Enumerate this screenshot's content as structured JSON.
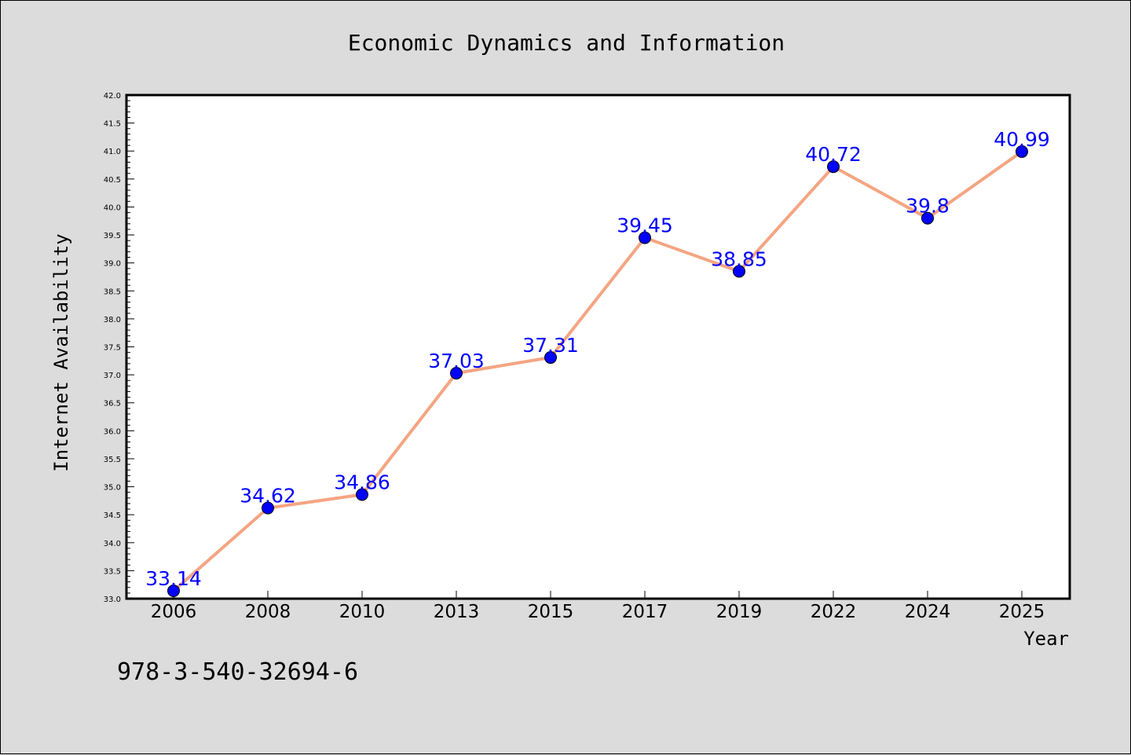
{
  "chart_data": {
    "type": "line",
    "title": "Economic Dynamics and Information",
    "xlabel": "Year",
    "ylabel": "Internet Availability",
    "categories": [
      "2006",
      "2008",
      "2010",
      "2013",
      "2015",
      "2017",
      "2019",
      "2022",
      "2024",
      "2025"
    ],
    "series": [
      {
        "values": [
          33.14,
          34.62,
          34.86,
          37.03,
          37.31,
          39.45,
          38.85,
          40.72,
          39.8,
          40.99
        ],
        "data_labels": [
          "33.14",
          "34.62",
          "34.86",
          "37.03",
          "37.31",
          "39.45",
          "38.85",
          "40.72",
          "39.8",
          "40.99"
        ],
        "line_color": "#f4a582",
        "marker_color": "#0000ff",
        "label_color": "#0000ff"
      }
    ],
    "ylim": [
      33.0,
      42.0
    ],
    "ytick_labels": [
      "33.0",
      "33.5",
      "34.0",
      "34.5",
      "35.0",
      "35.5",
      "36.0",
      "36.5",
      "37.0",
      "37.5",
      "38.0",
      "38.5",
      "39.0",
      "39.5",
      "40.0",
      "40.5",
      "41.0",
      "41.5",
      "42.0"
    ],
    "grid": false,
    "legend": "none",
    "background_color": "#dcdcdc",
    "plot_background_color": "#ffffff"
  },
  "footer": {
    "isbn": "978-3-540-32694-6"
  }
}
